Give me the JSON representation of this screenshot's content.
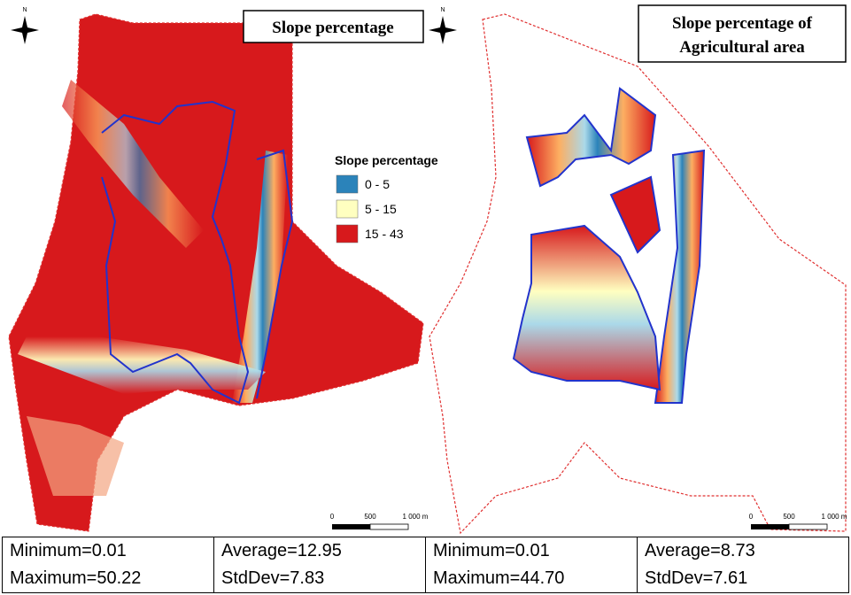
{
  "maps": [
    {
      "title": [
        "Slope percentage"
      ],
      "north": "N",
      "scale_labels": [
        "0",
        "500",
        "1 000 m"
      ]
    },
    {
      "title": [
        "Slope percentage of",
        "Agricultural area"
      ],
      "north": "N",
      "scale_labels": [
        "0",
        "500",
        "1 000 m"
      ]
    }
  ],
  "legend": {
    "title": "Slope percentage",
    "items": [
      {
        "label": "0 - 5",
        "color": "#2b83ba"
      },
      {
        "label": "5 - 15",
        "color": "#ffffc0"
      },
      {
        "label": "15 - 43",
        "color": "#d7191c"
      }
    ]
  },
  "table": {
    "rows": [
      [
        "Minimum=0.01",
        "Average=12.95",
        "Minimum=0.01",
        "Average=8.73"
      ],
      [
        "Maximum=50.22",
        "StdDev=7.83",
        "Maximum=44.70",
        "StdDev=7.61"
      ]
    ]
  }
}
